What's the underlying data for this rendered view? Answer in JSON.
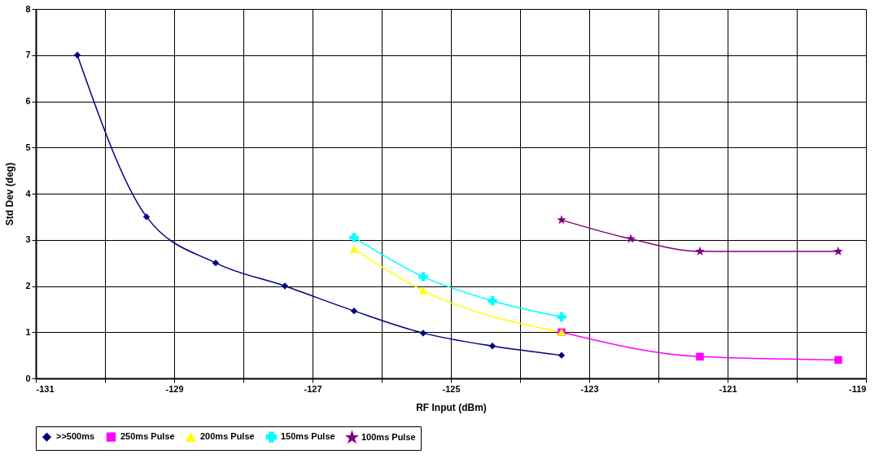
{
  "chart_data": {
    "type": "line",
    "xlabel": "RF Input (dBm)",
    "ylabel": "Std Dev (deg)",
    "xlim": [
      -131,
      -119
    ],
    "ylim": [
      0,
      8
    ],
    "xticks": [
      -131,
      {
        "value": -130,
        "label": null
      },
      -129,
      {
        "value": -128,
        "label": null
      },
      -127,
      {
        "value": -126,
        "label": null
      },
      -125,
      {
        "value": -124,
        "label": null
      },
      -123,
      {
        "value": -122,
        "label": null
      },
      -121,
      {
        "value": -120,
        "label": null
      },
      -119
    ],
    "yticks": [
      0,
      1,
      2,
      3,
      4,
      5,
      6,
      7,
      8
    ],
    "grid": true,
    "legend": "bottom",
    "line_style": "solid",
    "series": [
      {
        "name": ">>500ms",
        "color": "#000080",
        "marker": "diamond",
        "x": [
          -130.4,
          -129.4,
          -128.4,
          -127.4,
          -126.4,
          -125.4,
          -124.4,
          -123.4
        ],
        "values": [
          7.0,
          3.5,
          2.5,
          2.0,
          1.46,
          0.98,
          0.7,
          0.5
        ]
      },
      {
        "name": "250ms Pulse",
        "color": "#ff00ff",
        "marker": "square",
        "x": [
          -123.4,
          -121.4,
          -119.4
        ],
        "values": [
          1.0,
          0.47,
          0.4
        ]
      },
      {
        "name": "200ms Pulse",
        "color": "#ffff00",
        "marker": "triangle",
        "x": [
          -126.4,
          -125.4,
          -123.4
        ],
        "values": [
          2.8,
          1.9,
          1.0
        ]
      },
      {
        "name": "150ms Pulse",
        "color": "#00ffff",
        "marker": "cross",
        "x": [
          -126.4,
          -125.4,
          -124.4,
          -123.4
        ],
        "values": [
          3.05,
          2.2,
          1.68,
          1.33
        ]
      },
      {
        "name": "100ms Pulse",
        "color": "#800080",
        "marker": "star",
        "x": [
          -123.4,
          -122.4,
          -121.4,
          -119.4
        ],
        "values": [
          3.43,
          3.02,
          2.75,
          2.75
        ]
      }
    ]
  }
}
